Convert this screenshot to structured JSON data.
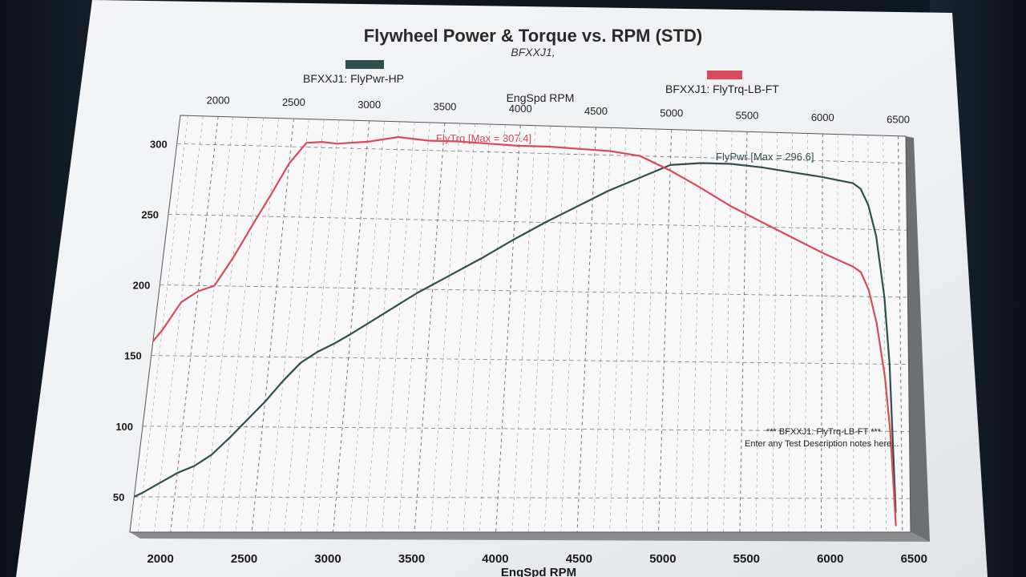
{
  "chart_data": {
    "type": "line",
    "title": "Flywheel Power & Torque vs. RPM (STD)",
    "subtitle": "BFXXJ1,",
    "xlabel_top": "EngSpd RPM",
    "xlabel_bottom": "EngSpd RPM",
    "x_ticks": [
      "2000",
      "2500",
      "3000",
      "3500",
      "4000",
      "4500",
      "5000",
      "5500",
      "6000",
      "6500"
    ],
    "y_ticks": [
      "300",
      "250",
      "200",
      "150",
      "100",
      "50"
    ],
    "xlim": [
      1750,
      6550
    ],
    "ylim": [
      25,
      320
    ],
    "grid": true,
    "legend": [
      {
        "label": "BFXXJ1: FlyPwr-HP",
        "color": "#2f4f4e"
      },
      {
        "label": "BFXXJ1: FlyTrq-LB-FT",
        "color": "#d84a5c"
      }
    ],
    "annotations": {
      "torque_max": "FlyTrq [Max = 307.4]",
      "power_max": "FlyPwr [Max = 296.6]",
      "note_line1": "*** BFXXJ1: FlyTrq-LB-FT ***",
      "note_line2": "Enter any Test Description notes here..."
    },
    "series": [
      {
        "name": "BFXXJ1: FlyPwr-HP",
        "color": "#2f4f4e",
        "x": [
          1750,
          1800,
          1900,
          2000,
          2100,
          2200,
          2300,
          2400,
          2500,
          2600,
          2700,
          2800,
          2900,
          3000,
          3200,
          3400,
          3600,
          3800,
          4000,
          4200,
          4400,
          4600,
          4800,
          5000,
          5200,
          5400,
          5600,
          5800,
          6000,
          6100,
          6200,
          6250,
          6300,
          6350,
          6400,
          6430,
          6460
        ],
        "y": [
          50,
          53,
          60,
          67,
          72,
          80,
          92,
          105,
          118,
          133,
          146,
          154,
          160,
          167,
          182,
          197,
          210,
          223,
          237,
          250,
          262,
          274,
          284,
          294,
          296,
          296,
          294,
          291,
          288,
          286,
          284,
          280,
          268,
          245,
          200,
          150,
          40
        ]
      },
      {
        "name": "BFXXJ1: FlyTrq-LB-FT",
        "color": "#d84a5c",
        "x": [
          1750,
          1800,
          1900,
          2000,
          2050,
          2100,
          2200,
          2300,
          2400,
          2500,
          2600,
          2700,
          2800,
          3000,
          3200,
          3400,
          3600,
          3800,
          4000,
          4200,
          4400,
          4600,
          4800,
          5000,
          5200,
          5400,
          5600,
          5800,
          6000,
          6100,
          6200,
          6250,
          6300,
          6350,
          6400,
          6430,
          6460
        ],
        "y": [
          160,
          168,
          188,
          196,
          198,
          200,
          220,
          243,
          265,
          288,
          303,
          304,
          303,
          305,
          309,
          307,
          307,
          306,
          305,
          305,
          304,
          303,
          300,
          290,
          278,
          265,
          254,
          243,
          232,
          227,
          222,
          218,
          205,
          180,
          140,
          100,
          30
        ]
      }
    ]
  }
}
